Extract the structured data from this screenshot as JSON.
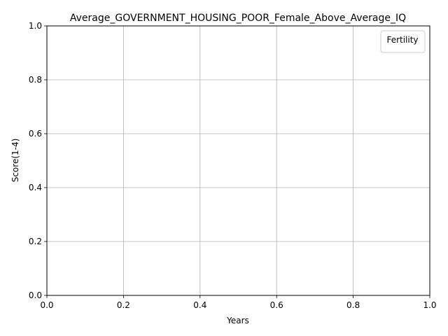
{
  "chart_data": {
    "type": "line",
    "title": "Average_GOVERNMENT_HOUSING_POOR_Female_Above_Average_IQ",
    "xlabel": "Years",
    "ylabel": "Score(1-4)",
    "xlim": [
      0.0,
      1.0
    ],
    "ylim": [
      0.0,
      1.0
    ],
    "xticks": [
      "0.0",
      "0.2",
      "0.4",
      "0.6",
      "0.8",
      "1.0"
    ],
    "yticks": [
      "0.0",
      "0.2",
      "0.4",
      "0.6",
      "0.8",
      "1.0"
    ],
    "grid": true,
    "series": [],
    "legend": {
      "title": "Fertility",
      "placement": "top-right",
      "entries": []
    }
  }
}
